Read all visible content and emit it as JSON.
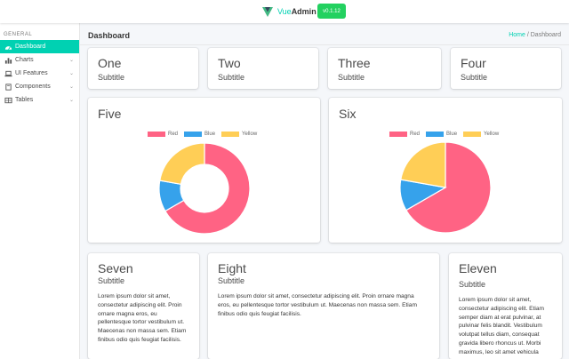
{
  "brand": {
    "name_accent": "Vue",
    "name_bold": "Admin",
    "version": "v0.1.12"
  },
  "sidebar": {
    "label": "GENERAL",
    "items": [
      {
        "label": "Dashboard",
        "icon": "dashboard-icon",
        "active": true
      },
      {
        "label": "Charts",
        "icon": "bar-chart-icon"
      },
      {
        "label": "UI Features",
        "icon": "laptop-icon"
      },
      {
        "label": "Components",
        "icon": "book-icon"
      },
      {
        "label": "Tables",
        "icon": "table-icon"
      }
    ]
  },
  "header": {
    "title": "Dashboard",
    "breadcrumb_home": "Home",
    "breadcrumb_sep": "/",
    "breadcrumb_current": "Dashboard"
  },
  "tiles": [
    {
      "title": "One",
      "subtitle": "Subtitle"
    },
    {
      "title": "Two",
      "subtitle": "Subtitle"
    },
    {
      "title": "Three",
      "subtitle": "Subtitle"
    },
    {
      "title": "Four",
      "subtitle": "Subtitle"
    }
  ],
  "chart_cards": [
    {
      "title": "Five"
    },
    {
      "title": "Six"
    }
  ],
  "colors": {
    "red": "#ff6384",
    "blue": "#36a2eb",
    "yellow": "#ffce56",
    "accent": "#00d1b2",
    "version_green": "#23d160"
  },
  "chart_data": [
    {
      "type": "pie",
      "variant": "doughnut",
      "categories": [
        "Red",
        "Blue",
        "Yellow"
      ],
      "values": [
        300,
        50,
        100
      ],
      "legend_position": "top"
    },
    {
      "type": "pie",
      "categories": [
        "Red",
        "Blue",
        "Yellow"
      ],
      "values": [
        300,
        50,
        100
      ],
      "legend_position": "top"
    }
  ],
  "text_cards": [
    {
      "title": "Seven",
      "subtitle": "Subtitle",
      "lines": [
        "Lorem ipsum dolor sit amet,",
        "consectetur adipiscing elit. Proin",
        "ornare magna eros, eu",
        "pellentesque tortor vestibulum ut.",
        "Maecenas non massa sem. Etiam",
        "finibus odio quis feugiat facilisis."
      ]
    },
    {
      "title": "Eight",
      "subtitle": "Subtitle",
      "lines": [
        "Lorem ipsum dolor sit amet, consectetur adipiscing elit. Proin ornare magna",
        "eros, eu pellentesque tortor vestibulum ut. Maecenas non massa sem. Etiam",
        "finibus odio quis feugiat facilisis."
      ]
    },
    {
      "title": "Eleven",
      "subtitle": "Subtitle",
      "lines": [
        "Lorem ipsum dolor sit amet,",
        "consectetur adipiscing elit. Etiam",
        "semper diam at erat pulvinar, at",
        "pulvinar felis blandit. Vestibulum",
        "volutpat tellus diam, consequat",
        "gravida libero rhoncus ut. Morbi",
        "maximus, leo sit amet vehicula"
      ]
    }
  ]
}
